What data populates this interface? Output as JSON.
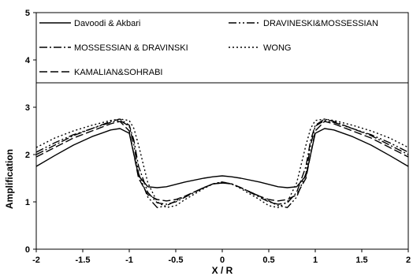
{
  "chart_data": {
    "type": "line",
    "xlabel": "X / R",
    "ylabel": "Amplification",
    "xlim": [
      -2,
      2
    ],
    "ylim": [
      0,
      5
    ],
    "xticks": [
      "-2",
      "-1.5",
      "-1",
      "-0.5",
      "0",
      "0.5",
      "1",
      "1.5",
      "2"
    ],
    "yticks": [
      "0",
      "1",
      "2",
      "3",
      "4",
      "5"
    ],
    "grid": false,
    "legend_position": "top, inside plot box",
    "series": [
      {
        "name": "Davoodi & Akbari",
        "dash": "solid",
        "x": [
          -2,
          -1.8,
          -1.6,
          -1.4,
          -1.2,
          -1.1,
          -1.0,
          -0.95,
          -0.9,
          -0.8,
          -0.7,
          -0.6,
          -0.4,
          -0.2,
          -0.1,
          0,
          0.1,
          0.2,
          0.4,
          0.6,
          0.7,
          0.8,
          0.9,
          0.95,
          1.0,
          1.1,
          1.2,
          1.4,
          1.6,
          1.8,
          2
        ],
        "y": [
          1.75,
          1.98,
          2.2,
          2.38,
          2.52,
          2.55,
          2.45,
          2.0,
          1.55,
          1.32,
          1.3,
          1.32,
          1.42,
          1.5,
          1.53,
          1.55,
          1.53,
          1.5,
          1.42,
          1.32,
          1.3,
          1.32,
          1.55,
          2.0,
          2.45,
          2.55,
          2.52,
          2.38,
          2.2,
          1.98,
          1.75
        ]
      },
      {
        "name": "DRAVINESKI&MOSSESSIAN",
        "dash": "dash-dot-dot",
        "x": [
          -2,
          -1.8,
          -1.6,
          -1.4,
          -1.2,
          -1.1,
          -1.0,
          -0.95,
          -0.9,
          -0.8,
          -0.7,
          -0.6,
          -0.5,
          -0.4,
          -0.2,
          -0.1,
          0,
          0.1,
          0.2,
          0.4,
          0.5,
          0.6,
          0.7,
          0.8,
          0.9,
          0.95,
          1.0,
          1.1,
          1.2,
          1.4,
          1.6,
          1.8,
          2
        ],
        "y": [
          2.05,
          2.25,
          2.42,
          2.55,
          2.68,
          2.72,
          2.6,
          2.2,
          1.6,
          1.1,
          0.88,
          0.92,
          1.02,
          1.12,
          1.3,
          1.38,
          1.4,
          1.38,
          1.3,
          1.12,
          1.02,
          0.92,
          0.88,
          1.1,
          1.6,
          2.2,
          2.6,
          2.72,
          2.68,
          2.55,
          2.42,
          2.25,
          2.05
        ]
      },
      {
        "name": "MOSSESSIAN & DRAVINSKI",
        "dash": "dash-dot",
        "x": [
          -2,
          -1.8,
          -1.6,
          -1.4,
          -1.2,
          -1.1,
          -1.0,
          -0.95,
          -0.9,
          -0.8,
          -0.7,
          -0.6,
          -0.5,
          -0.4,
          -0.2,
          -0.1,
          0,
          0.1,
          0.2,
          0.4,
          0.5,
          0.6,
          0.7,
          0.8,
          0.9,
          0.95,
          1.0,
          1.1,
          1.2,
          1.4,
          1.6,
          1.8,
          2
        ],
        "y": [
          2.0,
          2.2,
          2.4,
          2.55,
          2.7,
          2.75,
          2.62,
          2.3,
          1.75,
          1.2,
          0.98,
          0.95,
          1.0,
          1.1,
          1.3,
          1.38,
          1.42,
          1.38,
          1.3,
          1.1,
          1.0,
          0.95,
          0.98,
          1.2,
          1.75,
          2.3,
          2.62,
          2.75,
          2.7,
          2.55,
          2.4,
          2.2,
          2.0
        ]
      },
      {
        "name": "WONG",
        "dash": "dotted",
        "x": [
          -2,
          -1.8,
          -1.6,
          -1.4,
          -1.2,
          -1.1,
          -1.0,
          -0.95,
          -0.9,
          -0.8,
          -0.7,
          -0.6,
          -0.5,
          -0.4,
          -0.2,
          -0.1,
          0,
          0.1,
          0.2,
          0.4,
          0.5,
          0.6,
          0.7,
          0.8,
          0.9,
          0.95,
          1.0,
          1.1,
          1.2,
          1.4,
          1.6,
          1.8,
          2
        ],
        "y": [
          2.15,
          2.35,
          2.5,
          2.62,
          2.72,
          2.75,
          2.72,
          2.55,
          2.2,
          1.4,
          1.0,
          0.88,
          0.92,
          1.05,
          1.28,
          1.38,
          1.42,
          1.38,
          1.28,
          1.05,
          0.92,
          0.88,
          1.0,
          1.4,
          2.2,
          2.55,
          2.72,
          2.75,
          2.72,
          2.62,
          2.5,
          2.35,
          2.15
        ]
      },
      {
        "name": "KAMALIAN&SOHRABI",
        "dash": "long-dash",
        "x": [
          -2,
          -1.8,
          -1.6,
          -1.4,
          -1.2,
          -1.1,
          -1.0,
          -0.95,
          -0.9,
          -0.8,
          -0.7,
          -0.6,
          -0.5,
          -0.4,
          -0.2,
          -0.1,
          0,
          0.1,
          0.2,
          0.4,
          0.5,
          0.6,
          0.7,
          0.8,
          0.9,
          0.95,
          1.0,
          1.1,
          1.2,
          1.4,
          1.6,
          1.8,
          2
        ],
        "y": [
          1.95,
          2.15,
          2.35,
          2.5,
          2.65,
          2.7,
          2.5,
          2.0,
          1.5,
          1.15,
          1.05,
          1.02,
          1.05,
          1.12,
          1.3,
          1.38,
          1.4,
          1.38,
          1.3,
          1.12,
          1.05,
          1.02,
          1.05,
          1.15,
          1.5,
          2.0,
          2.5,
          2.7,
          2.65,
          2.5,
          2.35,
          2.15,
          1.95
        ]
      }
    ]
  }
}
